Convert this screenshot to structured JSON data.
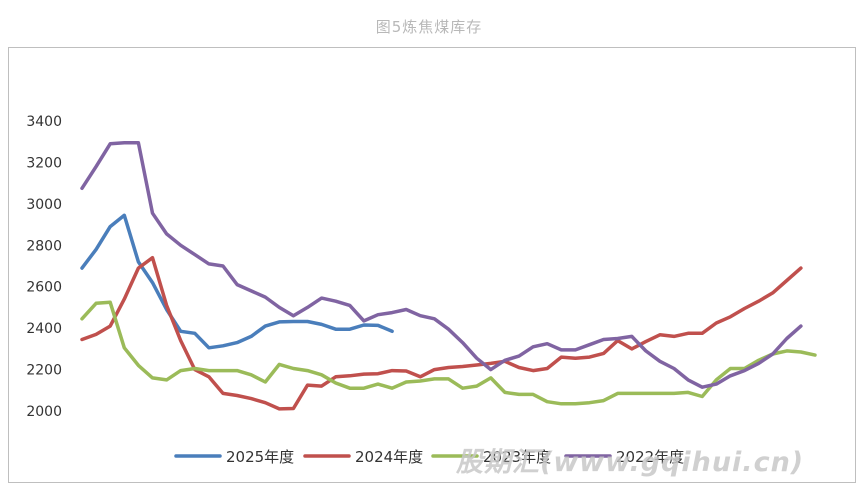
{
  "chart_data": {
    "type": "line",
    "title": "图5炼焦煤库存",
    "ylim": [
      2000,
      3400
    ],
    "yticks": [
      2000,
      2200,
      2400,
      2600,
      2800,
      3000,
      3200,
      3400
    ],
    "x_count": 53,
    "grid": false,
    "legend_position": "bottom",
    "series": [
      {
        "name": "2025年度",
        "color": "#4A7EBB",
        "values": [
          2690,
          2780,
          2890,
          2945,
          2720,
          2620,
          2490,
          2385,
          2375,
          2305,
          2315,
          2330,
          2360,
          2410,
          2430,
          2432,
          2432,
          2418,
          2395,
          2395,
          2415,
          2413,
          2385
        ]
      },
      {
        "name": "2024年度",
        "color": "#C0504D",
        "values": [
          2345,
          2370,
          2410,
          2540,
          2690,
          2740,
          2510,
          2340,
          2200,
          2165,
          2085,
          2075,
          2060,
          2040,
          2010,
          2012,
          2125,
          2120,
          2165,
          2170,
          2178,
          2180,
          2195,
          2193,
          2165,
          2200,
          2210,
          2215,
          2222,
          2230,
          2240,
          2210,
          2195,
          2205,
          2260,
          2255,
          2260,
          2278,
          2340,
          2300,
          2335,
          2368,
          2360,
          2375,
          2375,
          2425,
          2455,
          2495,
          2530,
          2570,
          2630,
          2690
        ]
      },
      {
        "name": "2023年度",
        "color": "#9BBB59",
        "values": [
          2445,
          2520,
          2525,
          2305,
          2220,
          2160,
          2150,
          2195,
          2205,
          2195,
          2195,
          2195,
          2175,
          2140,
          2225,
          2205,
          2195,
          2175,
          2135,
          2110,
          2110,
          2130,
          2110,
          2140,
          2145,
          2155,
          2155,
          2110,
          2120,
          2160,
          2090,
          2080,
          2080,
          2045,
          2035,
          2035,
          2040,
          2050,
          2085,
          2085,
          2085,
          2085,
          2085,
          2090,
          2070,
          2150,
          2205,
          2205,
          2245,
          2275,
          2290,
          2285,
          2270
        ]
      },
      {
        "name": "2022年度",
        "color": "#8064A2",
        "values": [
          3075,
          3180,
          3290,
          3295,
          3295,
          2955,
          2855,
          2800,
          2755,
          2710,
          2700,
          2610,
          2580,
          2550,
          2500,
          2460,
          2500,
          2545,
          2530,
          2510,
          2435,
          2465,
          2475,
          2490,
          2460,
          2445,
          2395,
          2330,
          2255,
          2200,
          2245,
          2265,
          2310,
          2325,
          2295,
          2295,
          2320,
          2345,
          2350,
          2360,
          2290,
          2240,
          2205,
          2150,
          2115,
          2130,
          2170,
          2195,
          2230,
          2275,
          2350,
          2410
        ]
      }
    ]
  },
  "watermark": "股期汇(www.gqihui.cn)"
}
